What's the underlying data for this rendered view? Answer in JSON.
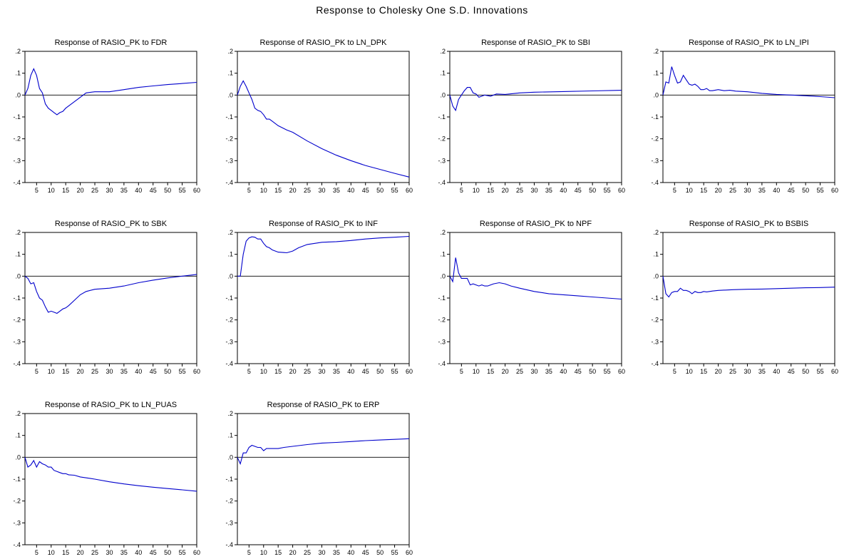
{
  "figure_title": "Response to Cholesky One S.D. Innovations",
  "chart_data": [
    {
      "type": "line",
      "title": "Response of RASIO_PK to FDR",
      "xticks": [
        5,
        10,
        15,
        20,
        25,
        30,
        35,
        40,
        45,
        50,
        55,
        60
      ],
      "ytick_labels": [
        ".2",
        ".1",
        ".0",
        "-.1",
        "-.2",
        "-.3",
        "-.4"
      ],
      "xlim": [
        1,
        60
      ],
      "ylim": [
        -0.4,
        0.2
      ],
      "zero_line": true,
      "line_color": "#0000cc",
      "x": [
        1,
        2,
        3,
        4,
        5,
        6,
        7,
        8,
        9,
        10,
        11,
        12,
        13,
        14,
        15,
        17,
        20,
        22,
        25,
        30,
        35,
        40,
        45,
        50,
        55,
        60
      ],
      "y": [
        0.0,
        0.03,
        0.09,
        0.12,
        0.09,
        0.03,
        0.01,
        -0.04,
        -0.06,
        -0.07,
        -0.08,
        -0.09,
        -0.08,
        -0.075,
        -0.06,
        -0.04,
        -0.01,
        0.01,
        0.015,
        0.015,
        0.025,
        0.035,
        0.042,
        0.048,
        0.053,
        0.058
      ]
    },
    {
      "type": "line",
      "title": "Response of RASIO_PK to LN_DPK",
      "xticks": [
        5,
        10,
        15,
        20,
        25,
        30,
        35,
        40,
        45,
        50,
        55,
        60
      ],
      "ytick_labels": [
        ".2",
        ".1",
        ".0",
        "-.1",
        "-.2",
        "-.3",
        "-.4"
      ],
      "xlim": [
        1,
        60
      ],
      "ylim": [
        -0.4,
        0.2
      ],
      "zero_line": true,
      "line_color": "#0000cc",
      "x": [
        1,
        2,
        3,
        4,
        5,
        6,
        7,
        8,
        9,
        10,
        11,
        12,
        13,
        15,
        18,
        20,
        25,
        30,
        35,
        40,
        45,
        50,
        55,
        60
      ],
      "y": [
        0.0,
        0.04,
        0.065,
        0.04,
        0.01,
        -0.02,
        -0.06,
        -0.07,
        -0.075,
        -0.09,
        -0.11,
        -0.11,
        -0.12,
        -0.14,
        -0.16,
        -0.17,
        -0.21,
        -0.245,
        -0.275,
        -0.3,
        -0.322,
        -0.34,
        -0.358,
        -0.375
      ]
    },
    {
      "type": "line",
      "title": "Response of RASIO_PK to SBI",
      "xticks": [
        5,
        10,
        15,
        20,
        25,
        30,
        35,
        40,
        45,
        50,
        55,
        60
      ],
      "ytick_labels": [
        ".2",
        ".1",
        ".0",
        "-.1",
        "-.2",
        "-.3",
        "-.4"
      ],
      "xlim": [
        1,
        60
      ],
      "ylim": [
        -0.4,
        0.2
      ],
      "zero_line": true,
      "line_color": "#0000cc",
      "x": [
        1,
        2,
        3,
        4,
        5,
        6,
        7,
        8,
        9,
        10,
        11,
        12,
        13,
        15,
        17,
        20,
        25,
        30,
        40,
        50,
        60
      ],
      "y": [
        0.0,
        -0.05,
        -0.07,
        -0.02,
        0.0,
        0.02,
        0.035,
        0.035,
        0.01,
        0.005,
        -0.01,
        -0.005,
        0.0,
        -0.005,
        0.005,
        0.003,
        0.01,
        0.013,
        0.016,
        0.019,
        0.022
      ]
    },
    {
      "type": "line",
      "title": "Response of RASIO_PK to LN_IPI",
      "xticks": [
        5,
        10,
        15,
        20,
        25,
        30,
        35,
        40,
        45,
        50,
        55,
        60
      ],
      "ytick_labels": [
        ".2",
        ".1",
        ".0",
        "-.1",
        "-.2",
        "-.3",
        "-.4"
      ],
      "xlim": [
        1,
        60
      ],
      "ylim": [
        -0.4,
        0.2
      ],
      "zero_line": true,
      "line_color": "#0000cc",
      "x": [
        1,
        2,
        3,
        4,
        5,
        6,
        7,
        8,
        9,
        10,
        11,
        12,
        13,
        14,
        15,
        16,
        17,
        18,
        20,
        22,
        24,
        26,
        30,
        35,
        40,
        45,
        50,
        55,
        60
      ],
      "y": [
        0.0,
        0.06,
        0.055,
        0.13,
        0.09,
        0.055,
        0.06,
        0.09,
        0.07,
        0.05,
        0.045,
        0.05,
        0.04,
        0.025,
        0.025,
        0.03,
        0.02,
        0.02,
        0.025,
        0.02,
        0.022,
        0.018,
        0.015,
        0.008,
        0.003,
        0.0,
        -0.003,
        -0.007,
        -0.012
      ]
    },
    {
      "type": "line",
      "title": "Response of RASIO_PK to SBK",
      "xticks": [
        5,
        10,
        15,
        20,
        25,
        30,
        35,
        40,
        45,
        50,
        55,
        60
      ],
      "ytick_labels": [
        ".2",
        ".1",
        ".0",
        "-.1",
        "-.2",
        "-.3",
        "-.4"
      ],
      "xlim": [
        1,
        60
      ],
      "ylim": [
        -0.4,
        0.2
      ],
      "zero_line": true,
      "line_color": "#0000cc",
      "x": [
        1,
        2,
        3,
        4,
        5,
        6,
        7,
        8,
        9,
        10,
        11,
        12,
        13,
        14,
        15,
        16,
        18,
        20,
        22,
        25,
        30,
        35,
        40,
        45,
        50,
        55,
        60
      ],
      "y": [
        0.0,
        -0.01,
        -0.035,
        -0.03,
        -0.07,
        -0.1,
        -0.11,
        -0.14,
        -0.165,
        -0.16,
        -0.165,
        -0.17,
        -0.16,
        -0.15,
        -0.145,
        -0.135,
        -0.11,
        -0.085,
        -0.07,
        -0.06,
        -0.055,
        -0.045,
        -0.03,
        -0.018,
        -0.008,
        0.0,
        0.008
      ]
    },
    {
      "type": "line",
      "title": "Response of RASIO_PK to INF",
      "xticks": [
        5,
        10,
        15,
        20,
        25,
        30,
        35,
        40,
        45,
        50,
        55,
        60
      ],
      "ytick_labels": [
        ".2",
        ".1",
        ".0",
        "-.1",
        "-.2",
        "-.3",
        "-.4"
      ],
      "xlim": [
        1,
        60
      ],
      "ylim": [
        -0.4,
        0.2
      ],
      "zero_line": true,
      "line_color": "#0000cc",
      "x": [
        1,
        2,
        3,
        4,
        5,
        6,
        7,
        8,
        9,
        10,
        11,
        12,
        13,
        15,
        17,
        18,
        20,
        22,
        25,
        30,
        35,
        40,
        45,
        50,
        55,
        60
      ],
      "y": [
        0.0,
        0.0,
        0.1,
        0.16,
        0.175,
        0.18,
        0.178,
        0.17,
        0.17,
        0.15,
        0.135,
        0.13,
        0.12,
        0.11,
        0.108,
        0.107,
        0.115,
        0.13,
        0.145,
        0.155,
        0.158,
        0.163,
        0.17,
        0.175,
        0.178,
        0.182
      ]
    },
    {
      "type": "line",
      "title": "Response of RASIO_PK to NPF",
      "xticks": [
        5,
        10,
        15,
        20,
        25,
        30,
        35,
        40,
        45,
        50,
        55,
        60
      ],
      "ytick_labels": [
        ".2",
        ".1",
        ".0",
        "-.1",
        "-.2",
        "-.3",
        "-.4"
      ],
      "xlim": [
        1,
        60
      ],
      "ylim": [
        -0.4,
        0.2
      ],
      "zero_line": true,
      "line_color": "#0000cc",
      "x": [
        1,
        2,
        3,
        4,
        5,
        6,
        7,
        8,
        9,
        10,
        11,
        12,
        13,
        14,
        15,
        16,
        18,
        20,
        22,
        25,
        30,
        35,
        40,
        45,
        50,
        55,
        60
      ],
      "y": [
        0.0,
        -0.025,
        0.085,
        0.015,
        -0.01,
        -0.01,
        -0.01,
        -0.04,
        -0.035,
        -0.04,
        -0.045,
        -0.04,
        -0.045,
        -0.045,
        -0.04,
        -0.035,
        -0.03,
        -0.035,
        -0.045,
        -0.055,
        -0.07,
        -0.08,
        -0.085,
        -0.09,
        -0.095,
        -0.1,
        -0.105
      ]
    },
    {
      "type": "line",
      "title": "Response of RASIO_PK to BSBIS",
      "xticks": [
        5,
        10,
        15,
        20,
        25,
        30,
        35,
        40,
        45,
        50,
        55,
        60
      ],
      "ytick_labels": [
        ".2",
        ".1",
        ".0",
        "-.1",
        "-.2",
        "-.3",
        "-.4"
      ],
      "xlim": [
        1,
        60
      ],
      "ylim": [
        -0.4,
        0.2
      ],
      "zero_line": true,
      "line_color": "#0000cc",
      "x": [
        1,
        2,
        3,
        4,
        5,
        6,
        7,
        8,
        9,
        10,
        11,
        12,
        13,
        14,
        15,
        16,
        18,
        20,
        25,
        30,
        35,
        40,
        45,
        50,
        55,
        60
      ],
      "y": [
        0.0,
        -0.08,
        -0.095,
        -0.075,
        -0.07,
        -0.07,
        -0.055,
        -0.065,
        -0.065,
        -0.07,
        -0.08,
        -0.07,
        -0.075,
        -0.075,
        -0.07,
        -0.072,
        -0.068,
        -0.065,
        -0.062,
        -0.06,
        -0.059,
        -0.057,
        -0.055,
        -0.053,
        -0.052,
        -0.05
      ]
    },
    {
      "type": "line",
      "title": "Response of RASIO_PK to LN_PUAS",
      "xticks": [
        5,
        10,
        15,
        20,
        25,
        30,
        35,
        40,
        45,
        50,
        55,
        60
      ],
      "ytick_labels": [
        ".2",
        ".1",
        ".0",
        "-.1",
        "-.2",
        "-.3",
        "-.4"
      ],
      "xlim": [
        1,
        60
      ],
      "ylim": [
        -0.4,
        0.2
      ],
      "zero_line": true,
      "line_color": "#0000cc",
      "x": [
        1,
        2,
        3,
        4,
        5,
        6,
        7,
        8,
        9,
        10,
        11,
        12,
        13,
        14,
        15,
        16,
        18,
        20,
        25,
        30,
        35,
        40,
        45,
        50,
        55,
        60
      ],
      "y": [
        0.0,
        -0.045,
        -0.035,
        -0.015,
        -0.045,
        -0.02,
        -0.03,
        -0.035,
        -0.045,
        -0.045,
        -0.06,
        -0.065,
        -0.07,
        -0.075,
        -0.075,
        -0.08,
        -0.082,
        -0.09,
        -0.1,
        -0.112,
        -0.122,
        -0.13,
        -0.137,
        -0.143,
        -0.149,
        -0.155
      ]
    },
    {
      "type": "line",
      "title": "Response of RASIO_PK to ERP",
      "xticks": [
        5,
        10,
        15,
        20,
        25,
        30,
        35,
        40,
        45,
        50,
        55,
        60
      ],
      "ytick_labels": [
        ".2",
        ".1",
        ".0",
        "-.1",
        "-.2",
        "-.3",
        "-.4"
      ],
      "xlim": [
        1,
        60
      ],
      "ylim": [
        -0.4,
        0.2
      ],
      "zero_line": true,
      "line_color": "#0000cc",
      "x": [
        1,
        2,
        3,
        4,
        5,
        6,
        7,
        8,
        9,
        10,
        11,
        12,
        13,
        14,
        15,
        17,
        20,
        25,
        30,
        35,
        40,
        45,
        50,
        55,
        60
      ],
      "y": [
        0.0,
        -0.03,
        0.02,
        0.02,
        0.045,
        0.055,
        0.05,
        0.045,
        0.045,
        0.03,
        0.04,
        0.04,
        0.04,
        0.04,
        0.04,
        0.045,
        0.05,
        0.058,
        0.065,
        0.068,
        0.072,
        0.076,
        0.079,
        0.082,
        0.085
      ]
    }
  ]
}
